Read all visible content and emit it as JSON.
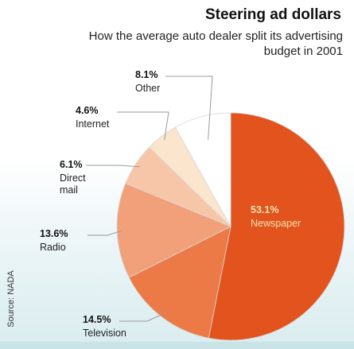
{
  "chart_data": {
    "type": "pie",
    "title": "Steering ad dollars",
    "subtitle": "How the average auto dealer split its advertising budget in 2001",
    "source": "Source: NADA",
    "slices": [
      {
        "label": "Newspaper",
        "value": 53.1,
        "value_label": "53.1%",
        "color": "#e3531d"
      },
      {
        "label": "Television",
        "value": 14.5,
        "value_label": "14.5%",
        "color": "#ec7a46"
      },
      {
        "label": "Radio",
        "value": 13.6,
        "value_label": "13.6%",
        "color": "#f2a07a"
      },
      {
        "label": "Direct mail",
        "value": 6.1,
        "value_label": "6.1%",
        "color": "#f7c6a8"
      },
      {
        "label": "Internet",
        "value": 4.6,
        "value_label": "4.6%",
        "color": "#fbe5cc"
      },
      {
        "label": "Other",
        "value": 8.1,
        "value_label": "8.1%",
        "color": "#ffffff"
      }
    ]
  }
}
